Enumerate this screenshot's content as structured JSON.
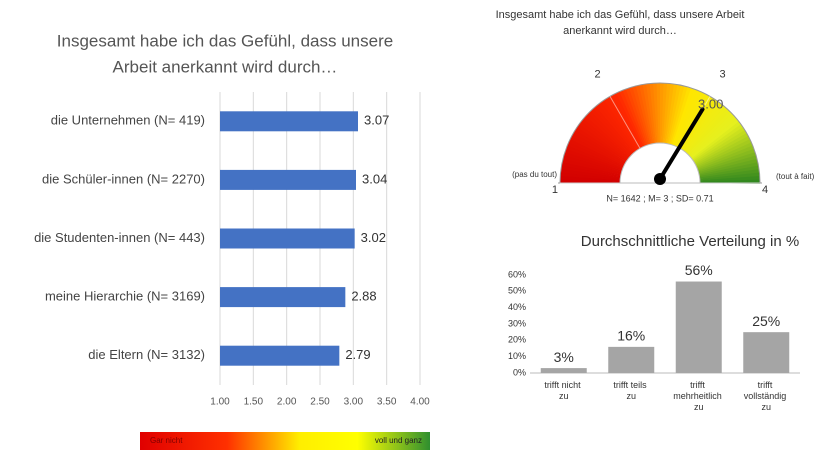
{
  "chart_data": [
    {
      "type": "hbar",
      "title": [
        "Insgesamt habe ich das Gefühl, dass unsere",
        "Arbeit anerkannt wird durch…"
      ],
      "categories": [
        "die Unternehmen (N= 419)",
        "die Schüler-innen (N= 2270)",
        "die Studenten-innen (N= 443)",
        "meine Hierarchie (N= 3169)",
        "die Eltern (N= 3132)"
      ],
      "values": [
        3.07,
        3.04,
        3.02,
        2.88,
        2.79
      ],
      "color": "#4472c4",
      "xlim": [
        1,
        4
      ],
      "xticks": [
        {
          "value": 1,
          "label": "1.00"
        },
        {
          "value": 1.5,
          "label": "1.50"
        },
        {
          "value": 2,
          "label": "2.00"
        },
        {
          "value": 2.5,
          "label": "2.50"
        },
        {
          "value": 3,
          "label": "3.00"
        },
        {
          "value": 3.5,
          "label": "3.50"
        },
        {
          "value": 4,
          "label": "4.00"
        }
      ],
      "grid": true
    },
    {
      "type": "gauge",
      "title": [
        "Insgesamt habe ich das Gefühl, dass unsere Arbeit",
        "anerkannt wird durch…"
      ],
      "value": 3,
      "value_label": "3.00",
      "lim": [
        1,
        4
      ],
      "ticks": [
        1,
        2,
        3,
        4
      ],
      "min_label": "(pas du tout)",
      "max_label": "(tout à fait)",
      "footnote": "N= 1642 ; M= 3 ; SD= 0.71"
    },
    {
      "type": "bar",
      "title": "Durchschnittliche Verteilung in %",
      "categories": [
        "trifft nicht zu",
        "trifft teils zu",
        "trifft mehrheitlich zu",
        "trifft vollständig zu"
      ],
      "values": [
        3,
        16,
        56,
        25
      ],
      "value_labels": [
        "3%",
        "16%",
        "56%",
        "25%"
      ],
      "color": "#a5a5a5",
      "ylim": [
        0,
        60
      ],
      "yticks": [
        {
          "value": 0,
          "label": "0%"
        },
        {
          "value": 10,
          "label": "10%"
        },
        {
          "value": 20,
          "label": "20%"
        },
        {
          "value": 30,
          "label": "30%"
        },
        {
          "value": 40,
          "label": "40%"
        },
        {
          "value": 50,
          "label": "50%"
        },
        {
          "value": 60,
          "label": "60%"
        }
      ],
      "grid": false
    }
  ],
  "color_legend": {
    "low_label": "Gar nicht",
    "high_label": "voll und ganz"
  }
}
